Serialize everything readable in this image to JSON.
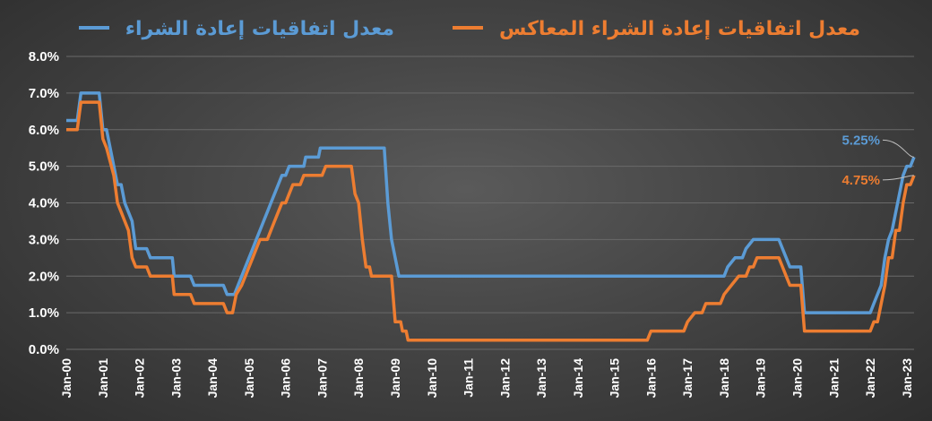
{
  "chart_data": {
    "type": "line",
    "title": "",
    "xlabel": "",
    "ylabel": "",
    "ylim": [
      0,
      8
    ],
    "yticks": [
      "0.0%",
      "1.0%",
      "2.0%",
      "3.0%",
      "4.0%",
      "5.0%",
      "6.0%",
      "7.0%",
      "8.0%"
    ],
    "xlim": [
      2000.0,
      2023.2
    ],
    "xticks": [
      "Jan-00",
      "Jan-01",
      "Jan-02",
      "Jan-03",
      "Jan-04",
      "Jan-05",
      "Jan-06",
      "Jan-07",
      "Jan-08",
      "Jan-09",
      "Jan-10",
      "Jan-11",
      "Jan-12",
      "Jan-13",
      "Jan-14",
      "Jan-15",
      "Jan-16",
      "Jan-17",
      "Jan-18",
      "Jan-19",
      "Jan-20",
      "Jan-21",
      "Jan-22",
      "Jan-23"
    ],
    "grid": true,
    "legend_position": "top",
    "series": [
      {
        "name": "معدل اتفاقيات إعادة الشراء",
        "color": "#5b9bd5",
        "end_label": "5.25%",
        "points": [
          [
            2000.0,
            6.25
          ],
          [
            2000.3,
            6.25
          ],
          [
            2000.4,
            7.0
          ],
          [
            2000.9,
            7.0
          ],
          [
            2001.0,
            6.0
          ],
          [
            2001.1,
            6.0
          ],
          [
            2001.3,
            5.0
          ],
          [
            2001.4,
            4.5
          ],
          [
            2001.5,
            4.5
          ],
          [
            2001.6,
            4.0
          ],
          [
            2001.7,
            3.75
          ],
          [
            2001.8,
            3.5
          ],
          [
            2001.9,
            2.75
          ],
          [
            2002.0,
            2.75
          ],
          [
            2002.2,
            2.75
          ],
          [
            2002.3,
            2.5
          ],
          [
            2002.9,
            2.5
          ],
          [
            2002.95,
            2.0
          ],
          [
            2003.4,
            2.0
          ],
          [
            2003.5,
            1.75
          ],
          [
            2004.3,
            1.75
          ],
          [
            2004.4,
            1.5
          ],
          [
            2004.6,
            1.5
          ],
          [
            2004.7,
            1.75
          ],
          [
            2004.8,
            2.0
          ],
          [
            2004.9,
            2.25
          ],
          [
            2005.0,
            2.5
          ],
          [
            2005.1,
            2.75
          ],
          [
            2005.2,
            3.0
          ],
          [
            2005.3,
            3.25
          ],
          [
            2005.4,
            3.5
          ],
          [
            2005.5,
            3.75
          ],
          [
            2005.6,
            4.0
          ],
          [
            2005.7,
            4.25
          ],
          [
            2005.8,
            4.5
          ],
          [
            2005.9,
            4.75
          ],
          [
            2006.0,
            4.75
          ],
          [
            2006.1,
            5.0
          ],
          [
            2006.5,
            5.0
          ],
          [
            2006.55,
            5.25
          ],
          [
            2006.9,
            5.25
          ],
          [
            2006.95,
            5.5
          ],
          [
            2008.7,
            5.5
          ],
          [
            2008.8,
            4.0
          ],
          [
            2008.9,
            3.0
          ],
          [
            2009.0,
            2.5
          ],
          [
            2009.1,
            2.0
          ],
          [
            2017.9,
            2.0
          ],
          [
            2018.0,
            2.0
          ],
          [
            2018.1,
            2.25
          ],
          [
            2018.3,
            2.5
          ],
          [
            2018.5,
            2.5
          ],
          [
            2018.6,
            2.75
          ],
          [
            2018.8,
            3.0
          ],
          [
            2019.5,
            3.0
          ],
          [
            2019.6,
            2.75
          ],
          [
            2019.7,
            2.5
          ],
          [
            2019.8,
            2.25
          ],
          [
            2020.1,
            2.25
          ],
          [
            2020.2,
            1.0
          ],
          [
            2022.0,
            1.0
          ],
          [
            2022.1,
            1.25
          ],
          [
            2022.3,
            1.75
          ],
          [
            2022.4,
            2.5
          ],
          [
            2022.5,
            3.0
          ],
          [
            2022.6,
            3.25
          ],
          [
            2022.7,
            3.75
          ],
          [
            2022.8,
            4.25
          ],
          [
            2022.9,
            4.75
          ],
          [
            2023.0,
            5.0
          ],
          [
            2023.1,
            5.0
          ],
          [
            2023.2,
            5.25
          ]
        ]
      },
      {
        "name": "معدل اتفاقيات إعادة الشراء المعاكس",
        "color": "#ed7d31",
        "end_label": "4.75%",
        "points": [
          [
            2000.0,
            6.0
          ],
          [
            2000.3,
            6.0
          ],
          [
            2000.4,
            6.75
          ],
          [
            2000.9,
            6.75
          ],
          [
            2001.0,
            5.75
          ],
          [
            2001.1,
            5.5
          ],
          [
            2001.3,
            4.75
          ],
          [
            2001.4,
            4.0
          ],
          [
            2001.5,
            3.75
          ],
          [
            2001.6,
            3.5
          ],
          [
            2001.7,
            3.25
          ],
          [
            2001.8,
            2.5
          ],
          [
            2001.9,
            2.25
          ],
          [
            2002.2,
            2.25
          ],
          [
            2002.3,
            2.0
          ],
          [
            2002.9,
            2.0
          ],
          [
            2002.95,
            1.5
          ],
          [
            2003.4,
            1.5
          ],
          [
            2003.5,
            1.25
          ],
          [
            2004.3,
            1.25
          ],
          [
            2004.4,
            1.0
          ],
          [
            2004.55,
            1.0
          ],
          [
            2004.65,
            1.5
          ],
          [
            2004.8,
            1.75
          ],
          [
            2004.9,
            2.0
          ],
          [
            2005.0,
            2.25
          ],
          [
            2005.1,
            2.5
          ],
          [
            2005.2,
            2.75
          ],
          [
            2005.3,
            3.0
          ],
          [
            2005.5,
            3.0
          ],
          [
            2005.6,
            3.25
          ],
          [
            2005.7,
            3.5
          ],
          [
            2005.8,
            3.75
          ],
          [
            2005.9,
            4.0
          ],
          [
            2006.0,
            4.0
          ],
          [
            2006.1,
            4.25
          ],
          [
            2006.2,
            4.5
          ],
          [
            2006.4,
            4.5
          ],
          [
            2006.5,
            4.75
          ],
          [
            2006.6,
            4.75
          ],
          [
            2006.9,
            4.75
          ],
          [
            2007.0,
            4.75
          ],
          [
            2007.1,
            5.0
          ],
          [
            2007.8,
            5.0
          ],
          [
            2007.9,
            4.25
          ],
          [
            2008.0,
            4.0
          ],
          [
            2008.1,
            3.0
          ],
          [
            2008.2,
            2.25
          ],
          [
            2008.3,
            2.25
          ],
          [
            2008.35,
            2.0
          ],
          [
            2008.9,
            2.0
          ],
          [
            2009.0,
            0.75
          ],
          [
            2009.15,
            0.75
          ],
          [
            2009.2,
            0.5
          ],
          [
            2009.3,
            0.5
          ],
          [
            2009.35,
            0.25
          ],
          [
            2015.9,
            0.25
          ],
          [
            2016.0,
            0.5
          ],
          [
            2016.9,
            0.5
          ],
          [
            2017.0,
            0.75
          ],
          [
            2017.2,
            1.0
          ],
          [
            2017.4,
            1.0
          ],
          [
            2017.5,
            1.25
          ],
          [
            2017.9,
            1.25
          ],
          [
            2018.0,
            1.5
          ],
          [
            2018.2,
            1.75
          ],
          [
            2018.4,
            2.0
          ],
          [
            2018.6,
            2.0
          ],
          [
            2018.7,
            2.25
          ],
          [
            2018.8,
            2.25
          ],
          [
            2018.9,
            2.5
          ],
          [
            2019.5,
            2.5
          ],
          [
            2019.6,
            2.25
          ],
          [
            2019.7,
            2.0
          ],
          [
            2019.8,
            1.75
          ],
          [
            2020.1,
            1.75
          ],
          [
            2020.2,
            0.5
          ],
          [
            2022.0,
            0.5
          ],
          [
            2022.1,
            0.75
          ],
          [
            2022.2,
            0.75
          ],
          [
            2022.3,
            1.25
          ],
          [
            2022.4,
            1.75
          ],
          [
            2022.5,
            2.5
          ],
          [
            2022.6,
            2.5
          ],
          [
            2022.7,
            3.25
          ],
          [
            2022.8,
            3.25
          ],
          [
            2022.9,
            4.0
          ],
          [
            2023.0,
            4.5
          ],
          [
            2023.1,
            4.5
          ],
          [
            2023.2,
            4.75
          ]
        ]
      }
    ]
  }
}
